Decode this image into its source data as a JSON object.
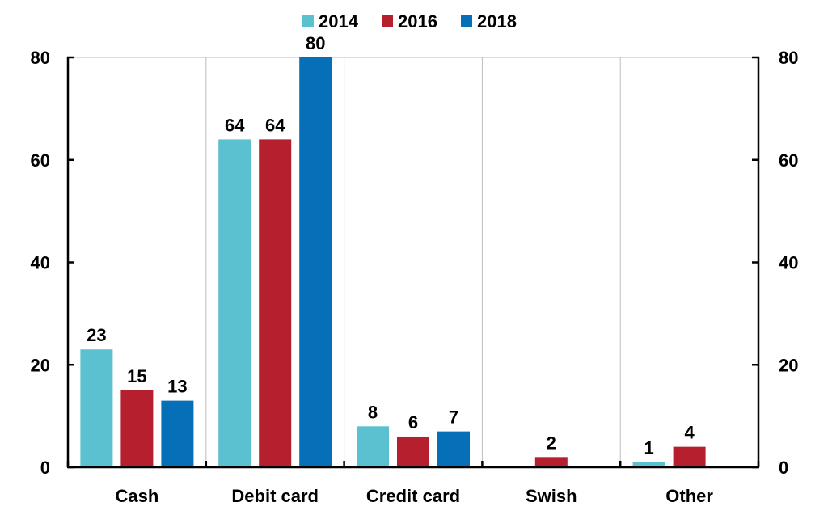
{
  "chart_data": {
    "type": "bar",
    "categories": [
      "Cash",
      "Debit card",
      "Credit card",
      "Swish",
      "Other"
    ],
    "series": [
      {
        "name": "2014",
        "color": "#5bc0cf",
        "values": [
          23,
          64,
          8,
          null,
          1
        ]
      },
      {
        "name": "2016",
        "color": "#b51f2e",
        "values": [
          15,
          64,
          6,
          2,
          4
        ]
      },
      {
        "name": "2018",
        "color": "#0570b8",
        "values": [
          13,
          80,
          7,
          null,
          null
        ]
      }
    ],
    "data_labels": [
      [
        "23",
        "64",
        "8",
        null,
        "1"
      ],
      [
        "15",
        "64",
        "6",
        "2",
        "4"
      ],
      [
        "13",
        "80",
        "7",
        null,
        null
      ]
    ],
    "ylim": [
      0,
      80
    ],
    "yticks": [
      0,
      20,
      40,
      60,
      80
    ],
    "ytick_labels": [
      "0",
      "20",
      "40",
      "60",
      "80"
    ],
    "secondary_yaxis": true,
    "grid": "vertical separators between categories",
    "legend_position": "top-center",
    "title": "",
    "xlabel": "",
    "ylabel": ""
  }
}
